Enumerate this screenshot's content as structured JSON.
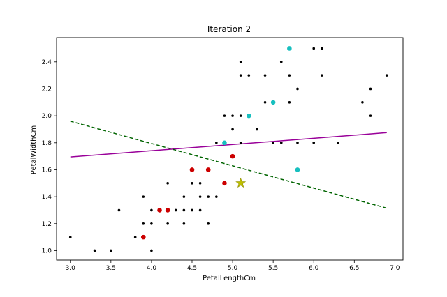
{
  "chart_data": {
    "type": "scatter",
    "title": "Iteration 2",
    "xlabel": "PetalLengthCm",
    "ylabel": "PetalWidthCm",
    "xlim": [
      2.83,
      7.1
    ],
    "ylim": [
      0.93,
      2.58
    ],
    "xticks": [
      3.0,
      3.5,
      4.0,
      4.5,
      5.0,
      5.5,
      6.0,
      6.5,
      7.0
    ],
    "yticks": [
      1.0,
      1.2,
      1.4,
      1.6,
      1.8,
      2.0,
      2.2,
      2.4
    ],
    "grid": false,
    "colors": {
      "data": "#000000",
      "red": "#cc0000",
      "cyan": "#17bfbf",
      "star": "#bfbf00",
      "boundary_solid": "#990099",
      "boundary_dashed": "#006400"
    },
    "series": [
      {
        "marker": "small-dot",
        "color": "#000000",
        "points": [
          [
            3.0,
            1.1
          ],
          [
            3.3,
            1.0
          ],
          [
            3.5,
            1.0
          ],
          [
            3.6,
            1.3
          ],
          [
            3.8,
            1.1
          ],
          [
            3.9,
            1.4
          ],
          [
            3.9,
            1.2
          ],
          [
            4.0,
            1.0
          ],
          [
            4.0,
            1.2
          ],
          [
            4.0,
            1.3
          ],
          [
            4.1,
            1.3
          ],
          [
            4.2,
            1.2
          ],
          [
            4.2,
            1.5
          ],
          [
            4.3,
            1.3
          ],
          [
            4.4,
            1.2
          ],
          [
            4.4,
            1.4
          ],
          [
            4.4,
            1.3
          ],
          [
            4.5,
            1.3
          ],
          [
            4.5,
            1.5
          ],
          [
            4.6,
            1.3
          ],
          [
            4.6,
            1.4
          ],
          [
            4.6,
            1.5
          ],
          [
            4.7,
            1.2
          ],
          [
            4.7,
            1.4
          ],
          [
            4.8,
            1.4
          ],
          [
            4.8,
            1.8
          ],
          [
            4.9,
            2.0
          ],
          [
            5.0,
            1.9
          ],
          [
            5.0,
            2.0
          ],
          [
            5.1,
            1.8
          ],
          [
            5.1,
            2.0
          ],
          [
            5.1,
            2.3
          ],
          [
            5.1,
            2.4
          ],
          [
            5.2,
            2.3
          ],
          [
            5.3,
            1.9
          ],
          [
            5.4,
            2.1
          ],
          [
            5.4,
            2.3
          ],
          [
            5.5,
            1.8
          ],
          [
            5.6,
            1.8
          ],
          [
            5.6,
            2.4
          ],
          [
            5.7,
            2.1
          ],
          [
            5.7,
            2.3
          ],
          [
            5.8,
            1.8
          ],
          [
            5.8,
            2.2
          ],
          [
            6.0,
            1.8
          ],
          [
            6.0,
            2.5
          ],
          [
            6.1,
            2.3
          ],
          [
            6.1,
            2.5
          ],
          [
            6.3,
            1.8
          ],
          [
            6.6,
            2.1
          ],
          [
            6.7,
            2.0
          ],
          [
            6.7,
            2.2
          ],
          [
            6.9,
            2.3
          ]
        ]
      },
      {
        "marker": "dot",
        "color": "#cc0000",
        "points": [
          [
            3.9,
            1.1
          ],
          [
            4.1,
            1.3
          ],
          [
            4.2,
            1.3
          ],
          [
            4.5,
            1.6
          ],
          [
            4.7,
            1.6
          ],
          [
            4.9,
            1.5
          ],
          [
            5.0,
            1.7
          ]
        ]
      },
      {
        "marker": "dot",
        "color": "#17bfbf",
        "points": [
          [
            4.9,
            1.8
          ],
          [
            5.2,
            2.0
          ],
          [
            5.5,
            2.1
          ],
          [
            5.7,
            2.5
          ],
          [
            5.8,
            1.6
          ]
        ]
      },
      {
        "marker": "star",
        "color": "#bfbf00",
        "points": [
          [
            5.1,
            1.5
          ]
        ]
      }
    ],
    "lines": [
      {
        "style": "solid",
        "color": "#990099",
        "x": [
          3.0,
          6.9
        ],
        "y": [
          1.695,
          1.875
        ]
      },
      {
        "style": "dashed",
        "color": "#006400",
        "x": [
          3.0,
          6.9
        ],
        "y": [
          1.96,
          1.315
        ]
      }
    ]
  }
}
